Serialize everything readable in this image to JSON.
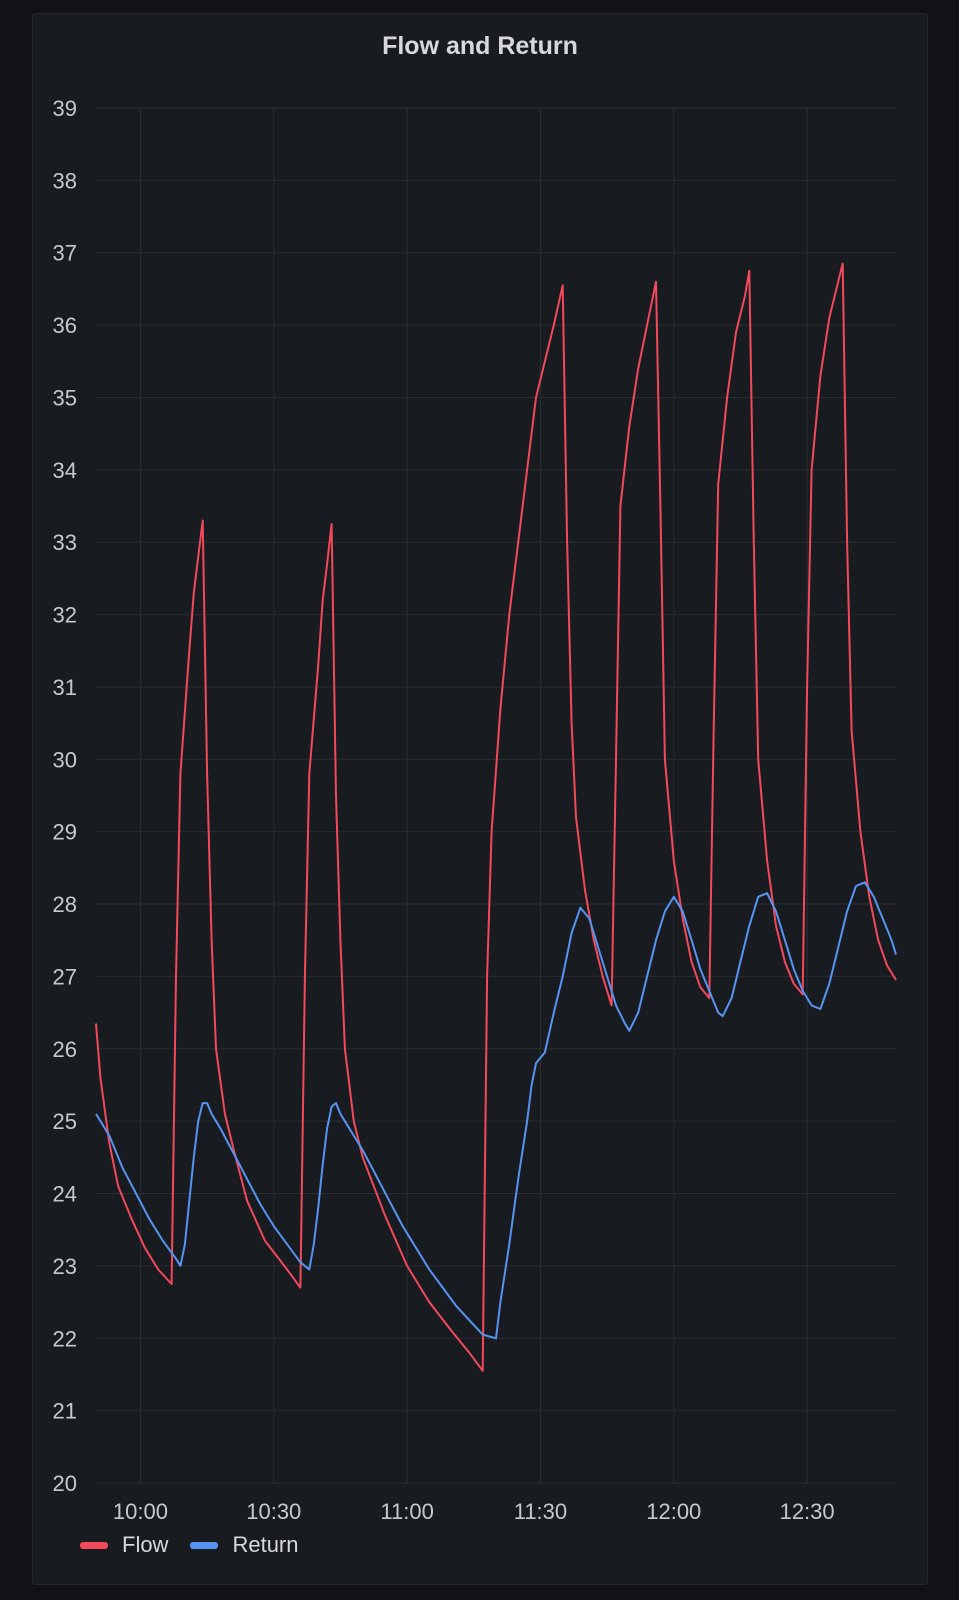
{
  "panel": {
    "title": "Flow and Return"
  },
  "legend": [
    {
      "label": "Flow",
      "color": "#f2495c"
    },
    {
      "label": "Return",
      "color": "#5794f2"
    }
  ],
  "chart_data": {
    "type": "line",
    "title": "Flow and Return",
    "xlabel": "",
    "ylabel": "",
    "x_axis": {
      "type": "time",
      "range": [
        "09:50",
        "12:50"
      ],
      "ticks": [
        "10:00",
        "10:30",
        "11:00",
        "11:30",
        "12:00",
        "12:30"
      ]
    },
    "ylim": [
      20,
      39
    ],
    "yticks": [
      20,
      21,
      22,
      23,
      24,
      25,
      26,
      27,
      28,
      29,
      30,
      31,
      32,
      33,
      34,
      35,
      36,
      37,
      38,
      39
    ],
    "grid": true,
    "legend_position": "bottom-left",
    "series": [
      {
        "name": "Flow",
        "color": "#f2495c",
        "points": [
          [
            "09:50",
            26.35
          ],
          [
            "09:51",
            25.6
          ],
          [
            "09:53",
            24.7
          ],
          [
            "09:55",
            24.1
          ],
          [
            "09:58",
            23.65
          ],
          [
            "10:01",
            23.25
          ],
          [
            "10:04",
            22.95
          ],
          [
            "10:07",
            22.75
          ],
          [
            "10:08",
            27.0
          ],
          [
            "10:09",
            29.8
          ],
          [
            "10:11",
            31.5
          ],
          [
            "10:12",
            32.3
          ],
          [
            "10:13",
            32.8
          ],
          [
            "10:14",
            33.3
          ],
          [
            "10:15",
            29.8
          ],
          [
            "10:16",
            27.5
          ],
          [
            "10:17",
            26.0
          ],
          [
            "10:19",
            25.1
          ],
          [
            "10:21",
            24.6
          ],
          [
            "10:24",
            23.9
          ],
          [
            "10:28",
            23.35
          ],
          [
            "10:33",
            22.95
          ],
          [
            "10:36",
            22.7
          ],
          [
            "10:37",
            27.0
          ],
          [
            "10:38",
            29.8
          ],
          [
            "10:40",
            31.3
          ],
          [
            "10:41",
            32.2
          ],
          [
            "10:42",
            32.7
          ],
          [
            "10:43",
            33.25
          ],
          [
            "10:44",
            29.5
          ],
          [
            "10:45",
            27.5
          ],
          [
            "10:46",
            26.0
          ],
          [
            "10:48",
            25.0
          ],
          [
            "10:50",
            24.5
          ],
          [
            "10:55",
            23.7
          ],
          [
            "11:00",
            23.0
          ],
          [
            "11:05",
            22.5
          ],
          [
            "11:10",
            22.1
          ],
          [
            "11:14",
            21.8
          ],
          [
            "11:17",
            21.55
          ],
          [
            "11:18",
            27.0
          ],
          [
            "11:19",
            29.0
          ],
          [
            "11:21",
            30.7
          ],
          [
            "11:23",
            32.0
          ],
          [
            "11:25",
            33.0
          ],
          [
            "11:27",
            34.0
          ],
          [
            "11:29",
            35.0
          ],
          [
            "11:31",
            35.5
          ],
          [
            "11:33",
            36.0
          ],
          [
            "11:35",
            36.55
          ],
          [
            "11:36",
            33.0
          ],
          [
            "11:37",
            30.5
          ],
          [
            "11:38",
            29.2
          ],
          [
            "11:40",
            28.2
          ],
          [
            "11:42",
            27.5
          ],
          [
            "11:44",
            27.0
          ],
          [
            "11:46",
            26.6
          ],
          [
            "11:47",
            30.0
          ],
          [
            "11:48",
            33.5
          ],
          [
            "11:50",
            34.6
          ],
          [
            "11:52",
            35.4
          ],
          [
            "11:54",
            36.0
          ],
          [
            "11:56",
            36.6
          ],
          [
            "11:57",
            33.5
          ],
          [
            "11:58",
            30.0
          ],
          [
            "12:00",
            28.6
          ],
          [
            "12:02",
            27.8
          ],
          [
            "12:04",
            27.2
          ],
          [
            "12:06",
            26.85
          ],
          [
            "12:08",
            26.7
          ],
          [
            "12:09",
            30.5
          ],
          [
            "12:10",
            33.8
          ],
          [
            "12:12",
            35.0
          ],
          [
            "12:14",
            35.9
          ],
          [
            "12:16",
            36.4
          ],
          [
            "12:17",
            36.75
          ],
          [
            "12:18",
            33.0
          ],
          [
            "12:19",
            30.0
          ],
          [
            "12:21",
            28.6
          ],
          [
            "12:23",
            27.7
          ],
          [
            "12:25",
            27.2
          ],
          [
            "12:27",
            26.9
          ],
          [
            "12:29",
            26.75
          ],
          [
            "12:30",
            31.0
          ],
          [
            "12:31",
            34.0
          ],
          [
            "12:33",
            35.3
          ],
          [
            "12:35",
            36.1
          ],
          [
            "12:37",
            36.6
          ],
          [
            "12:38",
            36.85
          ],
          [
            "12:39",
            33.0
          ],
          [
            "12:40",
            30.4
          ],
          [
            "12:42",
            29.0
          ],
          [
            "12:44",
            28.1
          ],
          [
            "12:46",
            27.5
          ],
          [
            "12:48",
            27.15
          ],
          [
            "12:50",
            26.95
          ]
        ]
      },
      {
        "name": "Return",
        "color": "#5794f2",
        "points": [
          [
            "09:50",
            25.1
          ],
          [
            "09:53",
            24.8
          ],
          [
            "09:56",
            24.35
          ],
          [
            "09:59",
            24.0
          ],
          [
            "10:02",
            23.65
          ],
          [
            "10:05",
            23.35
          ],
          [
            "10:08",
            23.1
          ],
          [
            "10:09",
            23.0
          ],
          [
            "10:10",
            23.3
          ],
          [
            "10:11",
            23.9
          ],
          [
            "10:12",
            24.5
          ],
          [
            "10:13",
            25.0
          ],
          [
            "10:14",
            25.25
          ],
          [
            "10:15",
            25.25
          ],
          [
            "10:16",
            25.1
          ],
          [
            "10:17",
            25.0
          ],
          [
            "10:18",
            24.9
          ],
          [
            "10:21",
            24.55
          ],
          [
            "10:24",
            24.2
          ],
          [
            "10:27",
            23.85
          ],
          [
            "10:30",
            23.55
          ],
          [
            "10:33",
            23.3
          ],
          [
            "10:36",
            23.05
          ],
          [
            "10:38",
            22.95
          ],
          [
            "10:39",
            23.3
          ],
          [
            "10:40",
            23.8
          ],
          [
            "10:41",
            24.4
          ],
          [
            "10:42",
            24.9
          ],
          [
            "10:43",
            25.2
          ],
          [
            "10:44",
            25.25
          ],
          [
            "10:45",
            25.1
          ],
          [
            "10:46",
            25.0
          ],
          [
            "10:47",
            24.9
          ],
          [
            "10:50",
            24.6
          ],
          [
            "10:53",
            24.25
          ],
          [
            "10:56",
            23.9
          ],
          [
            "10:59",
            23.55
          ],
          [
            "11:02",
            23.25
          ],
          [
            "11:05",
            22.95
          ],
          [
            "11:08",
            22.7
          ],
          [
            "11:11",
            22.45
          ],
          [
            "11:14",
            22.25
          ],
          [
            "11:17",
            22.05
          ],
          [
            "11:20",
            22.0
          ],
          [
            "11:21",
            22.5
          ],
          [
            "11:23",
            23.3
          ],
          [
            "11:25",
            24.2
          ],
          [
            "11:27",
            25.0
          ],
          [
            "11:28",
            25.5
          ],
          [
            "11:29",
            25.8
          ],
          [
            "11:31",
            25.95
          ],
          [
            "11:33",
            26.5
          ],
          [
            "11:35",
            27.0
          ],
          [
            "11:37",
            27.6
          ],
          [
            "11:39",
            27.95
          ],
          [
            "11:41",
            27.8
          ],
          [
            "11:43",
            27.4
          ],
          [
            "11:45",
            27.0
          ],
          [
            "11:47",
            26.6
          ],
          [
            "11:49",
            26.35
          ],
          [
            "11:50",
            26.25
          ],
          [
            "11:52",
            26.5
          ],
          [
            "11:54",
            27.0
          ],
          [
            "11:56",
            27.5
          ],
          [
            "11:58",
            27.9
          ],
          [
            "12:00",
            28.1
          ],
          [
            "12:02",
            27.9
          ],
          [
            "12:04",
            27.5
          ],
          [
            "12:06",
            27.1
          ],
          [
            "12:08",
            26.8
          ],
          [
            "12:10",
            26.5
          ],
          [
            "12:11",
            26.45
          ],
          [
            "12:13",
            26.7
          ],
          [
            "12:15",
            27.2
          ],
          [
            "12:17",
            27.7
          ],
          [
            "12:19",
            28.1
          ],
          [
            "12:21",
            28.15
          ],
          [
            "12:23",
            27.9
          ],
          [
            "12:25",
            27.5
          ],
          [
            "12:27",
            27.1
          ],
          [
            "12:29",
            26.8
          ],
          [
            "12:31",
            26.6
          ],
          [
            "12:33",
            26.55
          ],
          [
            "12:35",
            26.9
          ],
          [
            "12:37",
            27.4
          ],
          [
            "12:39",
            27.9
          ],
          [
            "12:41",
            28.25
          ],
          [
            "12:43",
            28.3
          ],
          [
            "12:45",
            28.1
          ],
          [
            "12:47",
            27.8
          ],
          [
            "12:49",
            27.5
          ],
          [
            "12:50",
            27.3
          ]
        ]
      }
    ]
  }
}
